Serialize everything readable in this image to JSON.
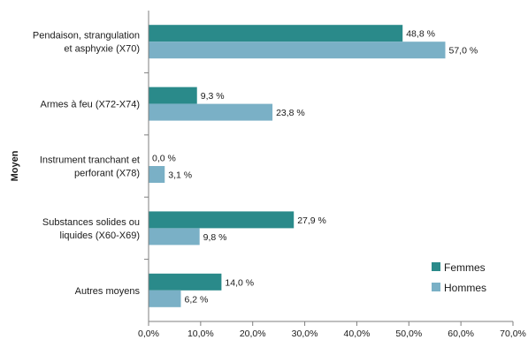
{
  "chart_data": {
    "type": "bar",
    "orientation": "horizontal",
    "ylabel": "Moyen",
    "xlim": [
      0,
      70
    ],
    "x_ticks": [
      "0,0%",
      "10,0%",
      "20,0%",
      "30,0%",
      "40,0%",
      "50,0%",
      "60,0%",
      "70,0%"
    ],
    "categories": [
      [
        "Pendaison, strangulation",
        "et asphyxie (X70)"
      ],
      [
        "Armes à feu (X72-X74)"
      ],
      [
        "Instrument tranchant et",
        "perforant (X78)"
      ],
      [
        "Substances solides ou",
        "liquides (X60-X69)"
      ],
      [
        "Autres moyens"
      ]
    ],
    "series": [
      {
        "name": "Femmes",
        "color": "#2a8a8a",
        "values": [
          48.8,
          9.3,
          0.0,
          27.9,
          14.0
        ],
        "labels": [
          "48,8 %",
          "9,3 %",
          "0,0 %",
          "27,9 %",
          "14,0 %"
        ]
      },
      {
        "name": "Hommes",
        "color": "#7ab0c6",
        "values": [
          57.0,
          23.8,
          3.1,
          9.8,
          6.2
        ],
        "labels": [
          "57,0 %",
          "23,8 %",
          "3,1 %",
          "9,8 %",
          "6,2 %"
        ]
      }
    ],
    "legend_position": "bottom-right",
    "grid": false
  }
}
